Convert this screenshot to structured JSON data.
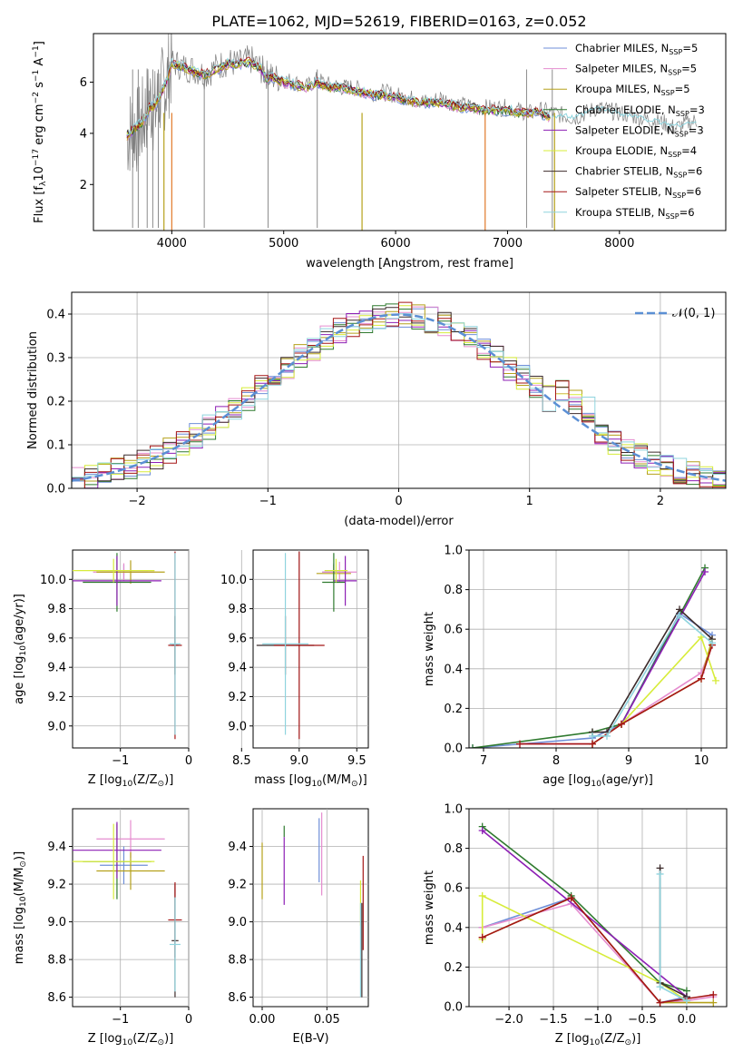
{
  "title": "PLATE=1062, MJD=52619, FIBERID=0163, z=0.052",
  "colors": [
    "#6f8fd8",
    "#e58ccf",
    "#b5a11b",
    "#2f7a2f",
    "#8d1fb5",
    "#d7ec3a",
    "#3b2a2a",
    "#a51616",
    "#8fd4de"
  ],
  "chart_data": [
    {
      "id": "spectrum",
      "type": "line",
      "xlabel": "wavelength [Angstrom, rest frame]",
      "ylabel": "Flux [f",
      "ylabel_sub": "λ",
      "ylabel_rest": "10",
      "ylabel_exp": "−17",
      "ylabel_units": " erg cm",
      "ylabel_exp2": "−2",
      "ylabel_s": " s",
      "ylabel_exp3": "−1",
      "ylabel_end": " A",
      "ylabel_exp4": "−1",
      "ylabel_close": "]",
      "xlim": [
        3300,
        8950
      ],
      "ylim": [
        0.2,
        7.9
      ],
      "xticks": [
        "4000",
        "5000",
        "6000",
        "7000",
        "8000"
      ],
      "yticks": [
        "2",
        "4",
        "6"
      ],
      "observed": {
        "color": "#808080",
        "x": [
          3600,
          3650,
          3700,
          3750,
          3800,
          3850,
          3900,
          3950,
          4000,
          4100,
          4200,
          4300,
          4400,
          4500,
          4600,
          4700,
          4800,
          4850,
          4900,
          5000,
          5100,
          5200,
          5300,
          5400,
          5500,
          5600,
          5700,
          5800,
          5900,
          6000,
          6100,
          6200,
          6300,
          6400,
          6500,
          6600,
          6700,
          6800,
          6900,
          7000,
          7100,
          7200,
          7300,
          7400,
          7500,
          7600,
          7700,
          7800,
          7900,
          8000,
          8100,
          8200,
          8300,
          8400,
          8500,
          8600,
          8700
        ],
        "y": [
          3.9,
          4.2,
          4.1,
          4.6,
          5.3,
          4.8,
          5.6,
          5.9,
          6.8,
          6.6,
          6.5,
          6.3,
          6.6,
          6.8,
          6.7,
          6.9,
          6.5,
          6.3,
          6.2,
          6.1,
          6.0,
          5.8,
          6.1,
          5.9,
          5.8,
          5.8,
          5.7,
          5.6,
          5.6,
          5.5,
          5.4,
          5.3,
          5.2,
          5.4,
          5.2,
          5.1,
          5.0,
          5.0,
          5.0,
          5.0,
          4.9,
          4.8,
          4.9,
          4.8,
          4.7,
          4.6,
          4.8,
          5.0,
          4.9,
          4.8,
          4.7,
          4.6,
          4.5,
          4.4,
          4.2,
          4.4,
          4.5
        ]
      },
      "model": {
        "x": [
          3600,
          3650,
          3700,
          3750,
          3800,
          3850,
          3900,
          3950,
          4000,
          4100,
          4200,
          4300,
          4400,
          4500,
          4600,
          4700,
          4800,
          4850,
          4900,
          5000,
          5100,
          5200,
          5300,
          5400,
          5500,
          5600,
          5700,
          5800,
          5900,
          6000,
          6100,
          6200,
          6300,
          6400,
          6500,
          6600,
          6700,
          6800,
          6900,
          7000,
          7100,
          7200,
          7300,
          7400
        ],
        "y": [
          3.9,
          4.1,
          4.3,
          4.5,
          5.0,
          5.1,
          5.5,
          6.0,
          6.7,
          6.6,
          6.4,
          6.3,
          6.5,
          6.7,
          6.7,
          6.8,
          6.5,
          6.1,
          6.2,
          6.0,
          5.9,
          5.8,
          6.0,
          5.8,
          5.8,
          5.7,
          5.6,
          5.5,
          5.5,
          5.4,
          5.3,
          5.2,
          5.2,
          5.2,
          5.1,
          5.0,
          5.0,
          4.9,
          4.9,
          4.9,
          4.8,
          4.8,
          4.8,
          4.5
        ]
      },
      "extension": {
        "x": [
          7400,
          7500,
          7600,
          7700,
          7800,
          7900,
          8000,
          8100,
          8200,
          8300,
          8400,
          8500,
          8600,
          8700
        ],
        "y": [
          4.7,
          4.7,
          4.6,
          4.8,
          5.0,
          4.9,
          4.8,
          4.7,
          4.6,
          4.5,
          4.4,
          4.3,
          4.4,
          4.4
        ]
      },
      "dips": [
        3930,
        4000,
        5700,
        6800,
        7420
      ],
      "legend": [
        {
          "label": "Chabrier MILES, N",
          "sub": "SSP",
          "tail": "=5"
        },
        {
          "label": "Salpeter MILES, N",
          "sub": "SSP",
          "tail": "=5"
        },
        {
          "label": "Kroupa MILES, N",
          "sub": "SSP",
          "tail": "=5"
        },
        {
          "label": "Chabrier ELODIE, N",
          "sub": "SSP",
          "tail": "=3"
        },
        {
          "label": "Salpeter ELODIE, N",
          "sub": "SSP",
          "tail": "=3"
        },
        {
          "label": "Kroupa ELODIE, N",
          "sub": "SSP",
          "tail": "=4"
        },
        {
          "label": "Chabrier STELIB, N",
          "sub": "SSP",
          "tail": "=6"
        },
        {
          "label": "Salpeter STELIB, N",
          "sub": "SSP",
          "tail": "=6"
        },
        {
          "label": "Kroupa STELIB, N",
          "sub": "SSP",
          "tail": "=6"
        }
      ]
    },
    {
      "id": "residuals",
      "type": "histogram",
      "xlabel": "(data-model)/error",
      "ylabel": "Normed distribution",
      "xlim": [
        -2.5,
        2.5
      ],
      "ylim": [
        0,
        0.45
      ],
      "xticks": [
        "−2",
        "−1",
        "0",
        "1",
        "2"
      ],
      "yticks": [
        "0.0",
        "0.1",
        "0.2",
        "0.3",
        "0.4"
      ],
      "grid": true,
      "legend_position": "top-right",
      "normal_curve_label": "𝒩(0, 1)",
      "normal_curve_color": "#5b8fd4"
    },
    {
      "id": "age-vs-Z",
      "type": "errorbar",
      "xlabel": "Z [log",
      "xlabel_sub": "10",
      "xlabel_rest": "(Z/Z",
      "xlabel_sub2": "⊙",
      "xlabel_close": ")]",
      "ylabel": "age  [log",
      "ylabel_sub": "10",
      "ylabel_rest": "(age/yr)]",
      "xlim": [
        -1.7,
        0.0
      ],
      "ylim": [
        8.85,
        10.2
      ],
      "xticks": [
        "−1",
        "0"
      ],
      "yticks": [
        "9.0",
        "9.2",
        "9.4",
        "9.6",
        "9.8",
        "10.0"
      ],
      "points": [
        {
          "x": -0.95,
          "xerr": 0.35,
          "y": 10.05,
          "yerr": 0.05
        },
        {
          "x": -0.95,
          "xerr": 0.45,
          "y": 10.05,
          "yerr": 0.06
        },
        {
          "x": -0.85,
          "xerr": 0.5,
          "y": 10.05,
          "yerr": 0.08
        },
        {
          "x": -1.05,
          "xerr": 0.5,
          "y": 9.98,
          "yerr": 0.2
        },
        {
          "x": -1.05,
          "xerr": 0.65,
          "y": 9.99,
          "yerr": 0.17
        },
        {
          "x": -1.1,
          "xerr": 0.6,
          "y": 10.06,
          "yerr": 0.08
        },
        {
          "x": -0.2,
          "xerr": 0.05,
          "y": 9.55,
          "yerr": 0.2
        },
        {
          "x": -0.2,
          "xerr": 0.1,
          "y": 9.55,
          "yerr": 0.64
        },
        {
          "x": -0.2,
          "xerr": 0.08,
          "y": 9.56,
          "yerr": 0.62
        }
      ]
    },
    {
      "id": "age-vs-mass",
      "type": "errorbar",
      "xlabel": "mass [log",
      "xlabel_sub": "10",
      "xlabel_rest": "(M/M",
      "xlabel_sub2": "⊙",
      "xlabel_close": ")]",
      "xlim": [
        8.6,
        9.6
      ],
      "ylim": [
        8.85,
        10.2
      ],
      "xticks": [
        "8.5",
        "9.0",
        "9.5"
      ],
      "yticks": [
        "9.0",
        "9.2",
        "9.4",
        "9.6",
        "9.8",
        "10.0"
      ],
      "points": [
        {
          "x": 9.3,
          "xerr": 0.1,
          "y": 10.05,
          "yerr": 0.06
        },
        {
          "x": 9.35,
          "xerr": 0.15,
          "y": 10.05,
          "yerr": 0.07
        },
        {
          "x": 9.3,
          "xerr": 0.15,
          "y": 10.04,
          "yerr": 0.06
        },
        {
          "x": 9.3,
          "xerr": 0.1,
          "y": 9.98,
          "yerr": 0.2
        },
        {
          "x": 9.4,
          "xerr": 0.1,
          "y": 9.99,
          "yerr": 0.17
        },
        {
          "x": 9.32,
          "xerr": 0.1,
          "y": 10.06,
          "yerr": 0.08
        },
        {
          "x": 8.88,
          "xerr": 0.25,
          "y": 9.55,
          "yerr": 0.2
        },
        {
          "x": 9.0,
          "xerr": 0.22,
          "y": 9.55,
          "yerr": 0.64
        },
        {
          "x": 8.88,
          "xerr": 0.2,
          "y": 9.56,
          "yerr": 0.62
        }
      ]
    },
    {
      "id": "weight-vs-age",
      "type": "line",
      "xlabel": "age  [log",
      "xlabel_sub": "10",
      "xlabel_rest": "(age/yr)]",
      "ylabel": "mass weight",
      "xlim": [
        6.8,
        10.35
      ],
      "ylim": [
        0,
        1.0
      ],
      "xticks": [
        "7",
        "8",
        "9",
        "10"
      ],
      "yticks": [
        "0.0",
        "0.2",
        "0.4",
        "0.6",
        "0.8",
        "1.0"
      ],
      "grid": true,
      "series": [
        {
          "x": [
            6.85,
            8.5,
            8.9,
            9.7,
            10.15
          ],
          "y": [
            0.0,
            0.05,
            0.12,
            0.68,
            0.57
          ]
        },
        {
          "x": [
            7.5,
            8.5,
            8.9,
            10.0,
            10.15
          ],
          "y": [
            0.02,
            0.02,
            0.12,
            0.38,
            0.52
          ]
        },
        {
          "x": [
            8.5,
            8.9,
            10.0,
            10.15
          ],
          "y": [
            0.02,
            0.12,
            0.35,
            0.55
          ]
        },
        {
          "x": [
            6.85,
            8.5,
            8.9,
            10.05
          ],
          "y": [
            0.0,
            0.08,
            0.12,
            0.91
          ]
        },
        {
          "x": [
            8.5,
            8.9,
            10.05
          ],
          "y": [
            0.02,
            0.12,
            0.89
          ]
        },
        {
          "x": [
            8.5,
            8.9,
            10.0,
            10.2
          ],
          "y": [
            0.02,
            0.12,
            0.56,
            0.34
          ]
        },
        {
          "x": [
            8.5,
            8.7,
            9.7,
            10.15
          ],
          "y": [
            0.08,
            0.08,
            0.7,
            0.55
          ]
        },
        {
          "x": [
            7.5,
            8.5,
            8.9,
            10.0,
            10.15
          ],
          "y": [
            0.02,
            0.02,
            0.12,
            0.35,
            0.52
          ]
        },
        {
          "x": [
            8.5,
            8.7,
            9.7,
            10.15
          ],
          "y": [
            0.06,
            0.06,
            0.67,
            0.53
          ]
        }
      ]
    },
    {
      "id": "mass-vs-Z",
      "type": "errorbar",
      "xlabel": "Z [log",
      "xlabel_sub": "10",
      "xlabel_rest": "(Z/Z",
      "xlabel_sub2": "⊙",
      "xlabel_close": ")]",
      "ylabel": "mass [log",
      "ylabel_sub": "10",
      "ylabel_rest": "(M/M",
      "ylabel_sub2": "⊙",
      "ylabel_close": ")]",
      "xlim": [
        -1.7,
        0.0
      ],
      "ylim": [
        8.55,
        9.6
      ],
      "xticks": [
        "−1",
        "0"
      ],
      "yticks": [
        "8.6",
        "8.8",
        "9.0",
        "9.2",
        "9.4"
      ],
      "points": [
        {
          "x": -0.95,
          "xerr": 0.35,
          "y": 9.3,
          "yerr": 0.1
        },
        {
          "x": -0.85,
          "xerr": 0.5,
          "y": 9.44,
          "yerr": 0.1
        },
        {
          "x": -0.85,
          "xerr": 0.5,
          "y": 9.27,
          "yerr": 0.1
        },
        {
          "x": -1.05,
          "xerr": 0.5,
          "y": 9.32,
          "yerr": 0.2
        },
        {
          "x": -1.05,
          "xerr": 0.65,
          "y": 9.38,
          "yerr": 0.15
        },
        {
          "x": -1.1,
          "xerr": 0.6,
          "y": 9.32,
          "yerr": 0.2
        },
        {
          "x": -0.2,
          "xerr": 0.05,
          "y": 8.9,
          "yerr": 0.3
        },
        {
          "x": -0.2,
          "xerr": 0.1,
          "y": 9.01,
          "yerr": 0.2
        },
        {
          "x": -0.2,
          "xerr": 0.08,
          "y": 8.88,
          "yerr": 0.25
        }
      ]
    },
    {
      "id": "mass-vs-ebv",
      "type": "errorbar",
      "xlabel": "E(B-V)",
      "xlim": [
        -0.007,
        0.082
      ],
      "ylim": [
        8.55,
        9.6
      ],
      "xticks": [
        "0.00",
        "0.05"
      ],
      "yticks": [
        "8.6",
        "8.8",
        "9.0",
        "9.2",
        "9.4"
      ],
      "points": [
        {
          "x": 0.044,
          "xerr": 0,
          "y": 9.38,
          "yerr": 0.17
        },
        {
          "x": 0.046,
          "xerr": 0,
          "y": 9.36,
          "yerr": 0.22
        },
        {
          "x": 0.0,
          "xerr": 0,
          "y": 9.27,
          "yerr": 0.15
        },
        {
          "x": 0.017,
          "xerr": 0,
          "y": 9.48,
          "yerr": 0.03
        },
        {
          "x": 0.017,
          "xerr": 0,
          "y": 9.27,
          "yerr": 0.18
        },
        {
          "x": 0.076,
          "xerr": 0,
          "y": 9.1,
          "yerr": 0.12
        },
        {
          "x": 0.077,
          "xerr": 0,
          "y": 8.85,
          "yerr": 0.25
        },
        {
          "x": 0.078,
          "xerr": 0,
          "y": 9.1,
          "yerr": 0.25
        },
        {
          "x": 0.076,
          "xerr": 0,
          "y": 8.85,
          "yerr": 0.25
        }
      ]
    },
    {
      "id": "weight-vs-Z",
      "type": "line",
      "xlabel": "Z [log",
      "xlabel_sub": "10",
      "xlabel_rest": "(Z/Z",
      "xlabel_sub2": "⊙",
      "xlabel_close": ")]",
      "ylabel": "mass weight",
      "xlim": [
        -2.45,
        0.45
      ],
      "ylim": [
        0,
        1.0
      ],
      "xticks": [
        "−2.0",
        "−1.5",
        "−1.0",
        "−0.5",
        "0.0"
      ],
      "yticks": [
        "0.0",
        "0.2",
        "0.4",
        "0.6",
        "0.8",
        "1.0"
      ],
      "grid": true,
      "series": [
        {
          "x": [
            -2.3,
            -1.3,
            -0.3,
            0.0
          ],
          "y": [
            0.4,
            0.55,
            0.02,
            0.05
          ]
        },
        {
          "x": [
            -2.3,
            -1.3,
            -0.3,
            0.0,
            0.3
          ],
          "y": [
            0.4,
            0.52,
            0.02,
            0.03,
            0.05
          ]
        },
        {
          "x": [
            -2.3,
            -1.3,
            -0.3,
            0.3
          ],
          "y": [
            0.35,
            0.55,
            0.02,
            0.02
          ]
        },
        {
          "x": [
            -2.3,
            -1.3,
            -0.3,
            0.0
          ],
          "y": [
            0.91,
            0.56,
            0.12,
            0.08
          ]
        },
        {
          "x": [
            -2.3,
            0.0
          ],
          "y": [
            0.89,
            0.05
          ]
        },
        {
          "x": [
            -2.3,
            -2.3,
            -0.3,
            0.0
          ],
          "y": [
            0.34,
            0.56,
            0.12,
            0.03
          ]
        },
        {
          "x": [
            -0.3,
            -0.3,
            0.0
          ],
          "y": [
            0.7,
            0.12,
            0.05
          ]
        },
        {
          "x": [
            -2.3,
            -1.3,
            -0.3,
            0.3
          ],
          "y": [
            0.35,
            0.55,
            0.02,
            0.06
          ]
        },
        {
          "x": [
            -0.3,
            -0.3,
            0.0
          ],
          "y": [
            0.67,
            0.1,
            0.03
          ]
        }
      ]
    }
  ]
}
